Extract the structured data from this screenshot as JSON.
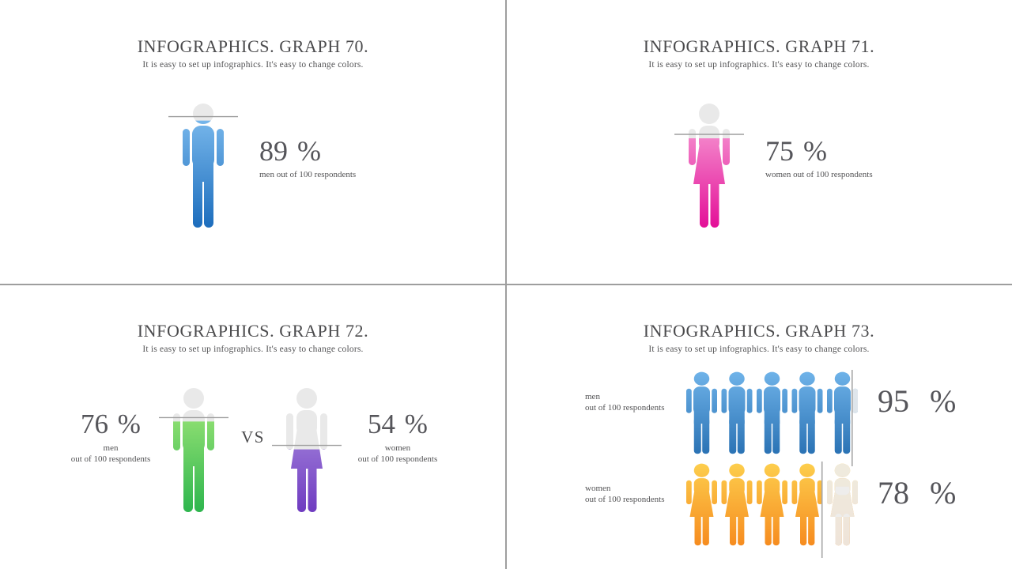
{
  "page": {
    "background": "#ffffff",
    "divider_color": "#9e9e9e",
    "title_color": "#4b4b4d",
    "number_color": "#55555a",
    "figure_gray": "#e9e9e9",
    "marker_line_color": "#9d9d9d"
  },
  "panels": [
    {
      "id": "graph-70",
      "title": "INFOGRAPHICS. GRAPH 70.",
      "subtitle": "It is easy to set up infographics. It's easy to change colors.",
      "value": "89 %",
      "label": "men out of 100 respondents",
      "figure": {
        "kind": "man",
        "percent": 89,
        "gradient": [
          "#85C2F2",
          "#1B6CBC"
        ]
      }
    },
    {
      "id": "graph-71",
      "title": "INFOGRAPHICS. GRAPH 71.",
      "subtitle": "It is easy to set up infographics. It's easy to change colors.",
      "value": "75 %",
      "label": "women out of 100 respondents",
      "figure": {
        "kind": "woman",
        "percent": 75,
        "gradient": [
          "#F9AEDC",
          "#E30D97"
        ]
      }
    },
    {
      "id": "graph-72",
      "title": "INFOGRAPHICS. GRAPH 72.",
      "subtitle": "It is easy to set up infographics. It's easy to change colors.",
      "vs_label": "VS",
      "left": {
        "value": "76 %",
        "label_line1": "men",
        "label_line2": "out of 100 respondents",
        "figure": {
          "kind": "man",
          "percent": 76,
          "gradient": [
            "#ABEB7D",
            "#2CB54D"
          ]
        }
      },
      "right": {
        "value": "54 %",
        "label_line1": "women",
        "label_line2": "out of 100 respondents",
        "figure": {
          "kind": "woman",
          "percent": 54,
          "gradient": [
            "#B59CE5",
            "#6E3AC0"
          ]
        }
      }
    },
    {
      "id": "graph-73",
      "title": "INFOGRAPHICS. GRAPH 73.",
      "subtitle": "It is easy to set up infographics. It's easy to change colors.",
      "rows": [
        {
          "value": "95 %",
          "label_line1": "men",
          "label_line2": "out of 100 respondents",
          "figure": {
            "kind": "man",
            "count": 5,
            "percent": 95,
            "gradient": [
              "#6FB3E9",
              "#2A72B4"
            ]
          }
        },
        {
          "value": "78 %",
          "label_line1": "women",
          "label_line2": "out of 100 respondents",
          "figure": {
            "kind": "woman",
            "count": 5,
            "percent": 78,
            "gradient": [
              "#FDCE4D",
              "#F68B1F"
            ]
          }
        }
      ]
    }
  ],
  "chart_data": [
    {
      "type": "pictograph",
      "title": "INFOGRAPHICS. GRAPH 70.",
      "subtitle": "It is easy to set up infographics. It's easy to change colors.",
      "series": [
        {
          "name": "men out of 100 respondents",
          "value": 89,
          "unit": "%",
          "color": "#1B6CBC"
        }
      ]
    },
    {
      "type": "pictograph",
      "title": "INFOGRAPHICS. GRAPH 71.",
      "subtitle": "It is easy to set up infographics. It's easy to change colors.",
      "series": [
        {
          "name": "women out of 100 respondents",
          "value": 75,
          "unit": "%",
          "color": "#E30D97"
        }
      ]
    },
    {
      "type": "pictograph",
      "title": "INFOGRAPHICS. GRAPH 72.",
      "subtitle": "It is easy to set up infographics. It's easy to change colors.",
      "series": [
        {
          "name": "men out of 100 respondents",
          "value": 76,
          "unit": "%",
          "color": "#2CB54D"
        },
        {
          "name": "women out of 100 respondents",
          "value": 54,
          "unit": "%",
          "color": "#6E3AC0"
        }
      ]
    },
    {
      "type": "pictograph",
      "title": "INFOGRAPHICS. GRAPH 73.",
      "subtitle": "It is easy to set up infographics. It's easy to change colors.",
      "series": [
        {
          "name": "men out of 100 respondents",
          "value": 95,
          "unit": "%",
          "color": "#2A72B4"
        },
        {
          "name": "women out of 100 respondents",
          "value": 78,
          "unit": "%",
          "color": "#F68B1F"
        }
      ]
    }
  ]
}
